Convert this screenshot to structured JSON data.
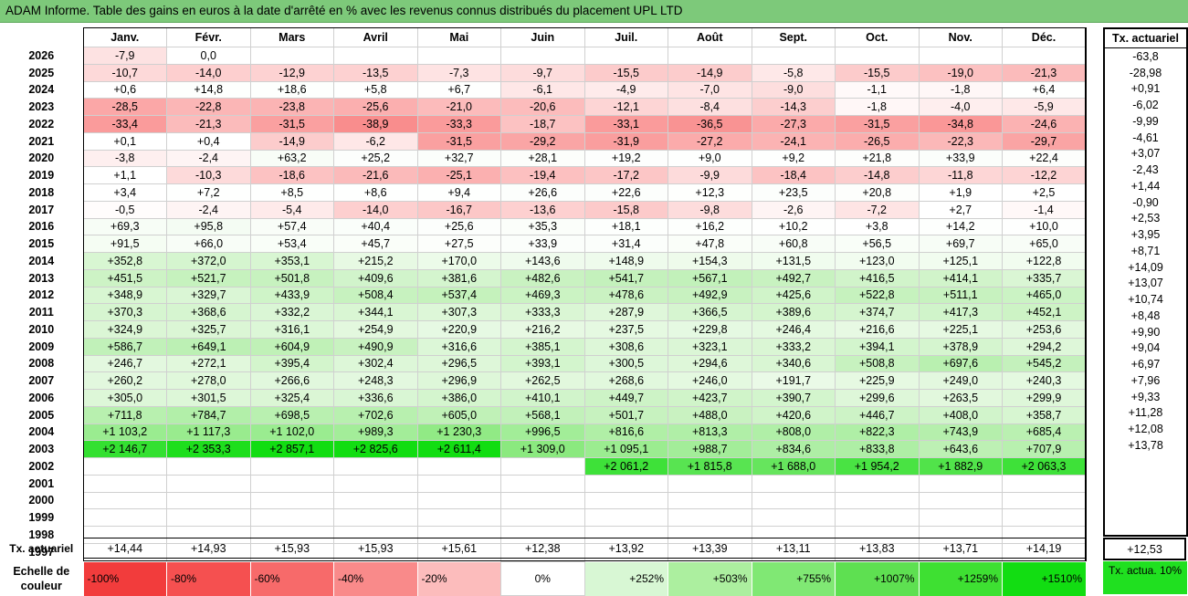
{
  "title": "ADAM Informe. Table des gains en euros à la date d'arrêté en % avec les revenus connus distribués du placement UPL LTD",
  "chart_data": {
    "type": "table",
    "months": [
      "Janv.",
      "Févr.",
      "Mars",
      "Avril",
      "Mai",
      "Juin",
      "Juil.",
      "Août",
      "Sept.",
      "Oct.",
      "Nov.",
      "Déc."
    ],
    "side_header": "Tx. actuariel",
    "rows": [
      {
        "year": "2026",
        "values": [
          "-7,9",
          "0,0",
          "",
          "",
          "",
          "",
          "",
          "",
          "",
          "",
          "",
          ""
        ],
        "num": [
          -7.9,
          0.0,
          null,
          null,
          null,
          null,
          null,
          null,
          null,
          null,
          null,
          null
        ],
        "rate": "-63,8"
      },
      {
        "year": "2025",
        "values": [
          "-10,7",
          "-14,0",
          "-12,9",
          "-13,5",
          "-7,3",
          "-9,7",
          "-15,5",
          "-14,9",
          "-5,8",
          "-15,5",
          "-19,0",
          "-21,3"
        ],
        "num": [
          -10.7,
          -14.0,
          -12.9,
          -13.5,
          -7.3,
          -9.7,
          -15.5,
          -14.9,
          -5.8,
          -15.5,
          -19.0,
          -21.3
        ],
        "rate": "-28,98"
      },
      {
        "year": "2024",
        "values": [
          "+0,6",
          "+14,8",
          "+18,6",
          "+5,8",
          "+6,7",
          "-6,1",
          "-4,9",
          "-7,0",
          "-9,0",
          "-1,1",
          "-1,8",
          "+6,4"
        ],
        "num": [
          0.6,
          14.8,
          18.6,
          5.8,
          6.7,
          -6.1,
          -4.9,
          -7.0,
          -9.0,
          -1.1,
          -1.8,
          6.4
        ],
        "rate": "+0,91"
      },
      {
        "year": "2023",
        "values": [
          "-28,5",
          "-22,8",
          "-23,8",
          "-25,6",
          "-21,0",
          "-20,6",
          "-12,1",
          "-8,4",
          "-14,3",
          "-1,8",
          "-4,0",
          "-5,9"
        ],
        "num": [
          -28.5,
          -22.8,
          -23.8,
          -25.6,
          -21.0,
          -20.6,
          -12.1,
          -8.4,
          -14.3,
          -1.8,
          -4.0,
          -5.9
        ],
        "rate": "-6,02"
      },
      {
        "year": "2022",
        "values": [
          "-33,4",
          "-21,3",
          "-31,5",
          "-38,9",
          "-33,3",
          "-18,7",
          "-33,1",
          "-36,5",
          "-27,3",
          "-31,5",
          "-34,8",
          "-24,6"
        ],
        "num": [
          -33.4,
          -21.3,
          -31.5,
          -38.9,
          -33.3,
          -18.7,
          -33.1,
          -36.5,
          -27.3,
          -31.5,
          -34.8,
          -24.6
        ],
        "rate": "-9,99"
      },
      {
        "year": "2021",
        "values": [
          "+0,1",
          "+0,4",
          "-14,9",
          "-6,2",
          "-31,5",
          "-29,2",
          "-31,9",
          "-27,2",
          "-24,1",
          "-26,5",
          "-22,3",
          "-29,7"
        ],
        "num": [
          0.1,
          0.4,
          -14.9,
          -6.2,
          -31.5,
          -29.2,
          -31.9,
          -27.2,
          -24.1,
          -26.5,
          -22.3,
          -29.7
        ],
        "rate": "-4,61"
      },
      {
        "year": "2020",
        "values": [
          "-3,8",
          "-2,4",
          "+63,2",
          "+25,2",
          "+32,7",
          "+28,1",
          "+19,2",
          "+9,0",
          "+9,2",
          "+21,8",
          "+33,9",
          "+22,4"
        ],
        "num": [
          -3.8,
          -2.4,
          63.2,
          25.2,
          32.7,
          28.1,
          19.2,
          9.0,
          9.2,
          21.8,
          33.9,
          22.4
        ],
        "rate": "+3,07"
      },
      {
        "year": "2019",
        "values": [
          "+1,1",
          "-10,3",
          "-18,6",
          "-21,6",
          "-25,1",
          "-19,4",
          "-17,2",
          "-9,9",
          "-18,4",
          "-14,8",
          "-11,8",
          "-12,2"
        ],
        "num": [
          1.1,
          -10.3,
          -18.6,
          -21.6,
          -25.1,
          -19.4,
          -17.2,
          -9.9,
          -18.4,
          -14.8,
          -11.8,
          -12.2
        ],
        "rate": "-2,43"
      },
      {
        "year": "2018",
        "values": [
          "+3,4",
          "+7,2",
          "+8,5",
          "+8,6",
          "+9,4",
          "+26,6",
          "+22,6",
          "+12,3",
          "+23,5",
          "+20,8",
          "+1,9",
          "+2,5"
        ],
        "num": [
          3.4,
          7.2,
          8.5,
          8.6,
          9.4,
          26.6,
          22.6,
          12.3,
          23.5,
          20.8,
          1.9,
          2.5
        ],
        "rate": "+1,44"
      },
      {
        "year": "2017",
        "values": [
          "-0,5",
          "-2,4",
          "-5,4",
          "-14,0",
          "-16,7",
          "-13,6",
          "-15,8",
          "-9,8",
          "-2,6",
          "-7,2",
          "+2,7",
          "-1,4"
        ],
        "num": [
          -0.5,
          -2.4,
          -5.4,
          -14.0,
          -16.7,
          -13.6,
          -15.8,
          -9.8,
          -2.6,
          -7.2,
          2.7,
          -1.4
        ],
        "rate": "-0,90"
      },
      {
        "year": "2016",
        "values": [
          "+69,3",
          "+95,8",
          "+57,4",
          "+40,4",
          "+25,6",
          "+35,3",
          "+18,1",
          "+16,2",
          "+10,2",
          "+3,8",
          "+14,2",
          "+10,0"
        ],
        "num": [
          69.3,
          95.8,
          57.4,
          40.4,
          25.6,
          35.3,
          18.1,
          16.2,
          10.2,
          3.8,
          14.2,
          10.0
        ],
        "rate": "+2,53"
      },
      {
        "year": "2015",
        "values": [
          "+91,5",
          "+66,0",
          "+53,4",
          "+45,7",
          "+27,5",
          "+33,9",
          "+31,4",
          "+47,8",
          "+60,8",
          "+56,5",
          "+69,7",
          "+65,0"
        ],
        "num": [
          91.5,
          66.0,
          53.4,
          45.7,
          27.5,
          33.9,
          31.4,
          47.8,
          60.8,
          56.5,
          69.7,
          65.0
        ],
        "rate": "+3,95"
      },
      {
        "year": "2014",
        "values": [
          "+352,8",
          "+372,0",
          "+353,1",
          "+215,2",
          "+170,0",
          "+143,6",
          "+148,9",
          "+154,3",
          "+131,5",
          "+123,0",
          "+125,1",
          "+122,8"
        ],
        "num": [
          352.8,
          372.0,
          353.1,
          215.2,
          170.0,
          143.6,
          148.9,
          154.3,
          131.5,
          123.0,
          125.1,
          122.8
        ],
        "rate": "+8,71"
      },
      {
        "year": "2013",
        "values": [
          "+451,5",
          "+521,7",
          "+501,8",
          "+409,6",
          "+381,6",
          "+482,6",
          "+541,7",
          "+567,1",
          "+492,7",
          "+416,5",
          "+414,1",
          "+335,7"
        ],
        "num": [
          451.5,
          521.7,
          501.8,
          409.6,
          381.6,
          482.6,
          541.7,
          567.1,
          492.7,
          416.5,
          414.1,
          335.7
        ],
        "rate": "+14,09"
      },
      {
        "year": "2012",
        "values": [
          "+348,9",
          "+329,7",
          "+433,9",
          "+508,4",
          "+537,4",
          "+469,3",
          "+478,6",
          "+492,9",
          "+425,6",
          "+522,8",
          "+511,1",
          "+465,0"
        ],
        "num": [
          348.9,
          329.7,
          433.9,
          508.4,
          537.4,
          469.3,
          478.6,
          492.9,
          425.6,
          522.8,
          511.1,
          465.0
        ],
        "rate": "+13,07"
      },
      {
        "year": "2011",
        "values": [
          "+370,3",
          "+368,6",
          "+332,2",
          "+344,1",
          "+307,3",
          "+333,3",
          "+287,9",
          "+366,5",
          "+389,6",
          "+374,7",
          "+417,3",
          "+452,1"
        ],
        "num": [
          370.3,
          368.6,
          332.2,
          344.1,
          307.3,
          333.3,
          287.9,
          366.5,
          389.6,
          374.7,
          417.3,
          452.1
        ],
        "rate": "+10,74"
      },
      {
        "year": "2010",
        "values": [
          "+324,9",
          "+325,7",
          "+316,1",
          "+254,9",
          "+220,9",
          "+216,2",
          "+237,5",
          "+229,8",
          "+246,4",
          "+216,6",
          "+225,1",
          "+253,6"
        ],
        "num": [
          324.9,
          325.7,
          316.1,
          254.9,
          220.9,
          216.2,
          237.5,
          229.8,
          246.4,
          216.6,
          225.1,
          253.6
        ],
        "rate": "+8,48"
      },
      {
        "year": "2009",
        "values": [
          "+586,7",
          "+649,1",
          "+604,9",
          "+490,9",
          "+316,6",
          "+385,1",
          "+308,6",
          "+323,1",
          "+333,2",
          "+394,1",
          "+378,9",
          "+294,2"
        ],
        "num": [
          586.7,
          649.1,
          604.9,
          490.9,
          316.6,
          385.1,
          308.6,
          323.1,
          333.2,
          394.1,
          378.9,
          294.2
        ],
        "rate": "+9,90"
      },
      {
        "year": "2008",
        "values": [
          "+246,7",
          "+272,1",
          "+395,4",
          "+302,4",
          "+296,5",
          "+393,1",
          "+300,5",
          "+294,6",
          "+340,6",
          "+508,8",
          "+697,6",
          "+545,2"
        ],
        "num": [
          246.7,
          272.1,
          395.4,
          302.4,
          296.5,
          393.1,
          300.5,
          294.6,
          340.6,
          508.8,
          697.6,
          545.2
        ],
        "rate": "+9,04"
      },
      {
        "year": "2007",
        "values": [
          "+260,2",
          "+278,0",
          "+266,6",
          "+248,3",
          "+296,9",
          "+262,5",
          "+268,6",
          "+246,0",
          "+191,7",
          "+225,9",
          "+249,0",
          "+240,3"
        ],
        "num": [
          260.2,
          278.0,
          266.6,
          248.3,
          296.9,
          262.5,
          268.6,
          246.0,
          191.7,
          225.9,
          249.0,
          240.3
        ],
        "rate": "+6,97"
      },
      {
        "year": "2006",
        "values": [
          "+305,0",
          "+301,5",
          "+325,4",
          "+336,6",
          "+386,0",
          "+410,1",
          "+449,7",
          "+423,7",
          "+390,7",
          "+299,6",
          "+263,5",
          "+299,9"
        ],
        "num": [
          305.0,
          301.5,
          325.4,
          336.6,
          386.0,
          410.1,
          449.7,
          423.7,
          390.7,
          299.6,
          263.5,
          299.9
        ],
        "rate": "+7,96"
      },
      {
        "year": "2005",
        "values": [
          "+711,8",
          "+784,7",
          "+698,5",
          "+702,6",
          "+605,0",
          "+568,1",
          "+501,7",
          "+488,0",
          "+420,6",
          "+446,7",
          "+408,0",
          "+358,7"
        ],
        "num": [
          711.8,
          784.7,
          698.5,
          702.6,
          605.0,
          568.1,
          501.7,
          488.0,
          420.6,
          446.7,
          408.0,
          358.7
        ],
        "rate": "+9,33"
      },
      {
        "year": "2004",
        "values": [
          "+1 103,2",
          "+1 117,3",
          "+1 102,0",
          "+989,3",
          "+1 230,3",
          "+996,5",
          "+816,6",
          "+813,3",
          "+808,0",
          "+822,3",
          "+743,9",
          "+685,4"
        ],
        "num": [
          1103.2,
          1117.3,
          1102.0,
          989.3,
          1230.3,
          996.5,
          816.6,
          813.3,
          808.0,
          822.3,
          743.9,
          685.4
        ],
        "rate": "+11,28"
      },
      {
        "year": "2003",
        "values": [
          "+2 146,7",
          "+2 353,3",
          "+2 857,1",
          "+2 825,6",
          "+2 611,4",
          "+1 309,0",
          "+1 095,1",
          "+988,7",
          "+834,6",
          "+833,8",
          "+643,6",
          "+707,9"
        ],
        "num": [
          2146.7,
          2353.3,
          2857.1,
          2825.6,
          2611.4,
          1309.0,
          1095.1,
          988.7,
          834.6,
          833.8,
          643.6,
          707.9
        ],
        "rate": "+12,08"
      },
      {
        "year": "2002",
        "values": [
          "",
          "",
          "",
          "",
          "",
          "",
          "+2 061,2",
          "+1 815,8",
          "+1 688,0",
          "+1 954,2",
          "+1 882,9",
          "+2 063,3"
        ],
        "num": [
          null,
          null,
          null,
          null,
          null,
          null,
          2061.2,
          1815.8,
          1688.0,
          1954.2,
          1882.9,
          2063.3
        ],
        "rate": "+13,78"
      },
      {
        "year": "2001",
        "values": [
          "",
          "",
          "",
          "",
          "",
          "",
          "",
          "",
          "",
          "",
          "",
          ""
        ],
        "num": [
          null,
          null,
          null,
          null,
          null,
          null,
          null,
          null,
          null,
          null,
          null,
          null
        ],
        "rate": ""
      },
      {
        "year": "2000",
        "values": [
          "",
          "",
          "",
          "",
          "",
          "",
          "",
          "",
          "",
          "",
          "",
          ""
        ],
        "num": [
          null,
          null,
          null,
          null,
          null,
          null,
          null,
          null,
          null,
          null,
          null,
          null
        ],
        "rate": ""
      },
      {
        "year": "1999",
        "values": [
          "",
          "",
          "",
          "",
          "",
          "",
          "",
          "",
          "",
          "",
          "",
          ""
        ],
        "num": [
          null,
          null,
          null,
          null,
          null,
          null,
          null,
          null,
          null,
          null,
          null,
          null
        ],
        "rate": ""
      },
      {
        "year": "1998",
        "values": [
          "",
          "",
          "",
          "",
          "",
          "",
          "",
          "",
          "",
          "",
          "",
          ""
        ],
        "num": [
          null,
          null,
          null,
          null,
          null,
          null,
          null,
          null,
          null,
          null,
          null,
          null
        ],
        "rate": ""
      },
      {
        "year": "1997",
        "values": [
          "",
          "",
          "",
          "",
          "",
          "",
          "",
          "",
          "",
          "",
          "",
          ""
        ],
        "num": [
          null,
          null,
          null,
          null,
          null,
          null,
          null,
          null,
          null,
          null,
          null,
          null
        ],
        "rate": ""
      }
    ],
    "footer": {
      "label": "Tx. actuariel",
      "values": [
        "+14,44",
        "+14,93",
        "+15,93",
        "+15,93",
        "+15,61",
        "+12,38",
        "+13,92",
        "+13,39",
        "+13,11",
        "+13,83",
        "+13,71",
        "+14,19"
      ],
      "overall": "+12,53"
    },
    "legend": {
      "label": "Echelle de couleur",
      "steps": [
        {
          "text": "-100%",
          "color": "#f23c3c"
        },
        {
          "text": "-80%",
          "color": "#f55050"
        },
        {
          "text": "-60%",
          "color": "#f76a6a"
        },
        {
          "text": "-40%",
          "color": "#f98a8a"
        },
        {
          "text": "-20%",
          "color": "#fcbcbc"
        },
        {
          "text": "0%",
          "color": "#ffffff"
        },
        {
          "text": "+252%",
          "color": "#d8f7d4"
        },
        {
          "text": "+503%",
          "color": "#acef9f"
        },
        {
          "text": "+755%",
          "color": "#80e874"
        },
        {
          "text": "+1007%",
          "color": "#5ee051"
        },
        {
          "text": "+1259%",
          "color": "#3ee032"
        },
        {
          "text": "+1510%",
          "color": "#12dd12"
        }
      ],
      "tx_label": "Tx. actua. 10%",
      "tx_color": "#20e020"
    }
  }
}
